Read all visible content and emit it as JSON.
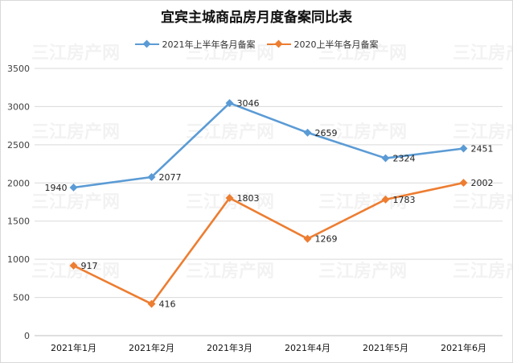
{
  "watermark": "三江房产网",
  "chart_data": {
    "type": "line",
    "title": "宜宾主城商品房月度备案同比表",
    "categories": [
      "2021年1月",
      "2021年2月",
      "2021年3月",
      "2021年4月",
      "2021年5月",
      "2021年6月"
    ],
    "series": [
      {
        "name": "2021年上半年各月备案",
        "color": "#5b9bd5",
        "values": [
          1940,
          2077,
          3046,
          2659,
          2324,
          2451
        ]
      },
      {
        "name": "2020上半年各月备案",
        "color": "#ed7d31",
        "values": [
          917,
          416,
          1803,
          1269,
          1783,
          2002
        ]
      }
    ],
    "ylim": [
      0,
      3500
    ],
    "yticks": [
      0,
      500,
      1000,
      1500,
      2000,
      2500,
      3000,
      3500
    ],
    "grid": true,
    "legend_position": "top-center"
  }
}
